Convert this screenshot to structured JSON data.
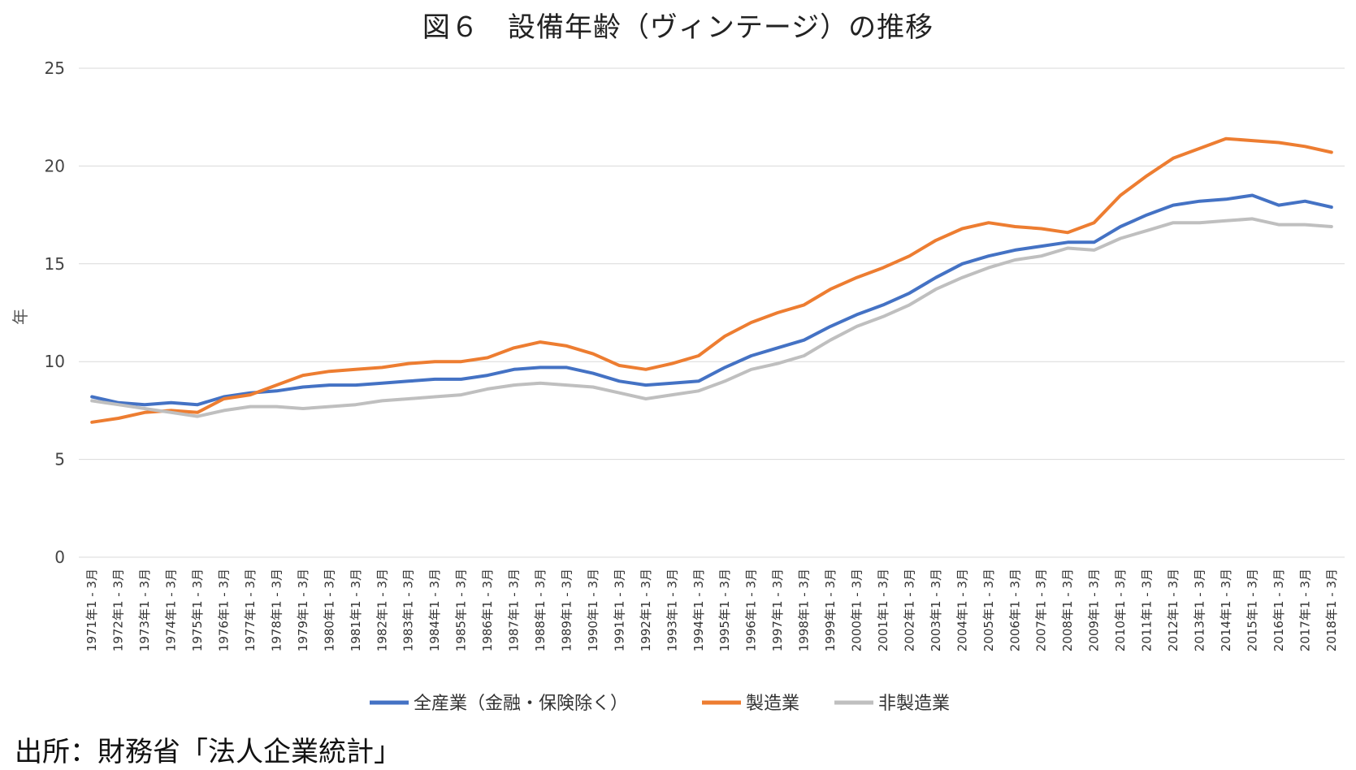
{
  "chart_data": {
    "type": "line",
    "title": "図６　設備年齢（ヴィンテージ）の推移",
    "ylabel": "年",
    "ylim": [
      0,
      25
    ],
    "yticks": [
      0,
      5,
      10,
      15,
      20,
      25
    ],
    "x_tick_labels": [
      "1971年1 - 3月",
      "1972年1 - 3月",
      "1973年1 - 3月",
      "1974年1 - 3月",
      "1975年1 - 3月",
      "1976年1 - 3月",
      "1977年1 - 3月",
      "1978年1 - 3月",
      "1979年1 - 3月",
      "1980年1 - 3月",
      "1981年1 - 3月",
      "1982年1 - 3月",
      "1983年1 - 3月",
      "1984年1 - 3月",
      "1985年1 - 3月",
      "1986年1 - 3月",
      "1987年1 - 3月",
      "1988年1 - 3月",
      "1989年1 - 3月",
      "1990年1 - 3月",
      "1991年1 - 3月",
      "1992年1 - 3月",
      "1993年1 - 3月",
      "1994年1 - 3月",
      "1995年1 - 3月",
      "1996年1 - 3月",
      "1997年1 - 3月",
      "1998年1 - 3月",
      "1999年1 - 3月",
      "2000年1 - 3月",
      "2001年1 - 3月",
      "2002年1 - 3月",
      "2003年1 - 3月",
      "2004年1 - 3月",
      "2005年1 - 3月",
      "2006年1 - 3月",
      "2007年1 - 3月",
      "2008年1 - 3月",
      "2009年1 - 3月",
      "2010年1 - 3月",
      "2011年1 - 3月",
      "2012年1 - 3月",
      "2013年1 - 3月",
      "2014年1 - 3月",
      "2015年1 - 3月",
      "2016年1 - 3月",
      "2017年1 - 3月",
      "2018年1 - 3月"
    ],
    "grid": true,
    "legend_position": "bottom",
    "series": [
      {
        "name": "全産業（金融・保険除く）",
        "color": "#4472C4",
        "values": [
          8.2,
          7.9,
          7.8,
          7.9,
          7.8,
          8.2,
          8.4,
          8.5,
          8.7,
          8.8,
          8.8,
          8.9,
          9.0,
          9.1,
          9.1,
          9.3,
          9.6,
          9.7,
          9.7,
          9.4,
          9.0,
          8.8,
          8.9,
          9.0,
          9.7,
          10.3,
          10.7,
          11.1,
          11.8,
          12.4,
          12.9,
          13.5,
          14.3,
          15.0,
          15.4,
          15.7,
          15.9,
          16.1,
          16.1,
          16.9,
          17.5,
          18.0,
          18.2,
          18.3,
          18.5,
          18.0,
          18.2,
          17.9
        ]
      },
      {
        "name": "製造業",
        "color": "#ED7D31",
        "values": [
          6.9,
          7.1,
          7.4,
          7.5,
          7.4,
          8.1,
          8.3,
          8.8,
          9.3,
          9.5,
          9.6,
          9.7,
          9.9,
          10.0,
          10.0,
          10.2,
          10.7,
          11.0,
          10.8,
          10.4,
          9.8,
          9.6,
          9.9,
          10.3,
          11.3,
          12.0,
          12.5,
          12.9,
          13.7,
          14.3,
          14.8,
          15.4,
          16.2,
          16.8,
          17.1,
          16.9,
          16.8,
          16.6,
          17.1,
          18.5,
          19.5,
          20.4,
          20.9,
          21.4,
          21.3,
          21.2,
          21.0,
          20.7
        ]
      },
      {
        "name": "非製造業",
        "color": "#BFBFBF",
        "values": [
          8.0,
          7.8,
          7.6,
          7.4,
          7.2,
          7.5,
          7.7,
          7.7,
          7.6,
          7.7,
          7.8,
          8.0,
          8.1,
          8.2,
          8.3,
          8.6,
          8.8,
          8.9,
          8.8,
          8.7,
          8.4,
          8.1,
          8.3,
          8.5,
          9.0,
          9.6,
          9.9,
          10.3,
          11.1,
          11.8,
          12.3,
          12.9,
          13.7,
          14.3,
          14.8,
          15.2,
          15.4,
          15.8,
          15.7,
          16.3,
          16.7,
          17.1,
          17.1,
          17.2,
          17.3,
          17.0,
          17.0,
          16.9
        ]
      }
    ]
  },
  "source": "出所：財務省「法人企業統計」"
}
